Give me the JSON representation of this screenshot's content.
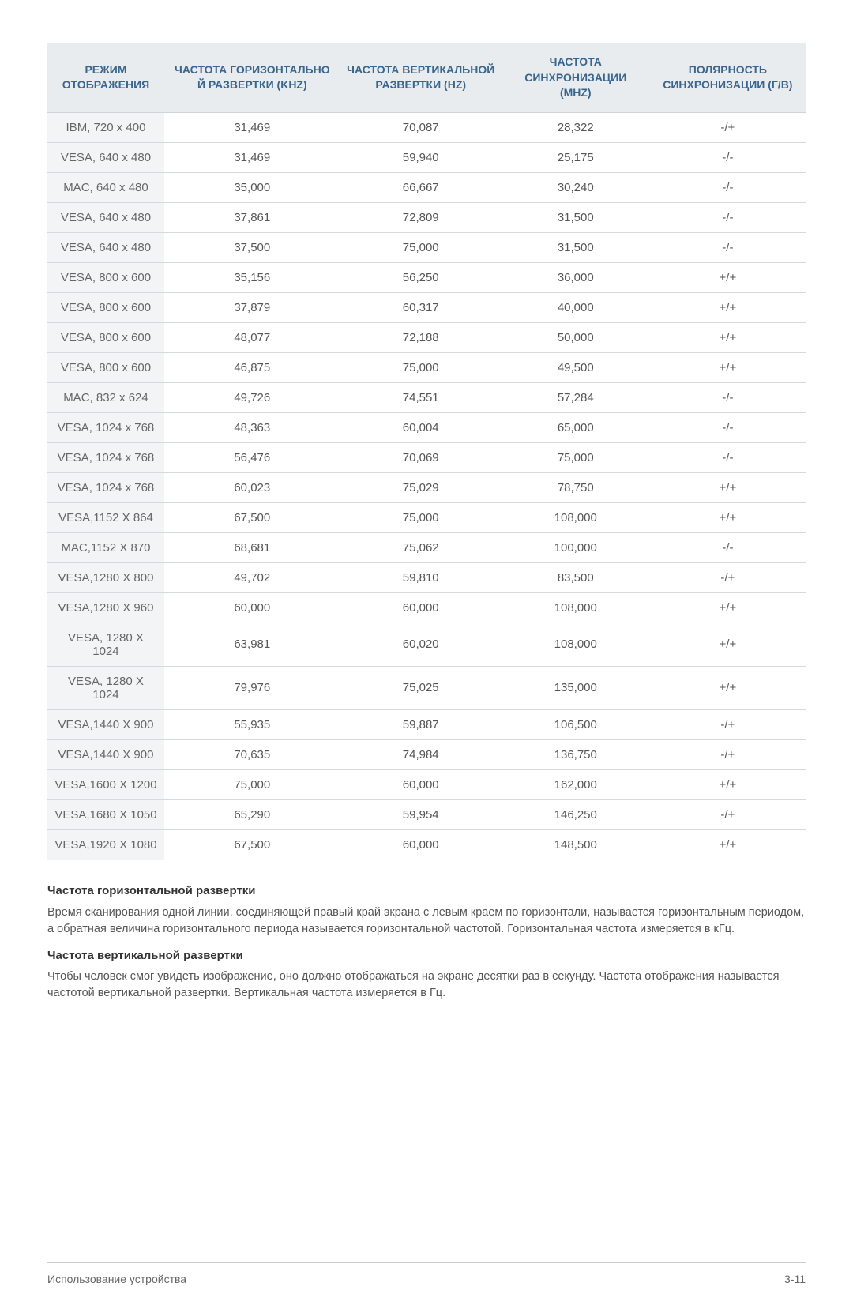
{
  "table": {
    "columns": [
      "РЕЖИМ ОТОБРАЖЕНИЯ",
      "ЧАСТОТА ГОРИЗОНТАЛЬНО Й РАЗВЕРТКИ (KHZ)",
      "ЧАСТОТА ВЕРТИКАЛЬНОЙ РАЗВЕРТКИ (HZ)",
      "ЧАСТОТА СИНХРОНИЗАЦИИ (MHZ)",
      "ПОЛЯРНОСТЬ СИНХРОНИЗАЦИИ (Г/В)"
    ],
    "header_color": "#38668f",
    "header_bg": "#e9ecee",
    "first_col_bg": "#f3f4f5",
    "border_color": "#d7dadc",
    "rows": [
      [
        "IBM, 720 x 400",
        "31,469",
        "70,087",
        "28,322",
        "-/+"
      ],
      [
        "VESA, 640 x 480",
        "31,469",
        "59,940",
        "25,175",
        "-/-"
      ],
      [
        "MAC, 640 x 480",
        "35,000",
        "66,667",
        "30,240",
        "-/-"
      ],
      [
        "VESA, 640 x 480",
        "37,861",
        "72,809",
        "31,500",
        "-/-"
      ],
      [
        "VESA, 640 x 480",
        "37,500",
        "75,000",
        "31,500",
        "-/-"
      ],
      [
        "VESA, 800 x 600",
        "35,156",
        "56,250",
        "36,000",
        "+/+"
      ],
      [
        "VESA, 800 x 600",
        "37,879",
        "60,317",
        "40,000",
        "+/+"
      ],
      [
        "VESA, 800 x 600",
        "48,077",
        "72,188",
        "50,000",
        "+/+"
      ],
      [
        "VESA, 800 x 600",
        "46,875",
        "75,000",
        "49,500",
        "+/+"
      ],
      [
        "MAC, 832 x 624",
        "49,726",
        "74,551",
        "57,284",
        "-/-"
      ],
      [
        "VESA, 1024 x 768",
        "48,363",
        "60,004",
        "65,000",
        "-/-"
      ],
      [
        "VESA, 1024 x 768",
        "56,476",
        "70,069",
        "75,000",
        "-/-"
      ],
      [
        "VESA, 1024 x 768",
        "60,023",
        "75,029",
        "78,750",
        "+/+"
      ],
      [
        "VESA,1152 X 864",
        "67,500",
        "75,000",
        "108,000",
        "+/+"
      ],
      [
        "MAC,1152 X 870",
        "68,681",
        "75,062",
        "100,000",
        "-/-"
      ],
      [
        "VESA,1280 X 800",
        "49,702",
        "59,810",
        "83,500",
        "-/+"
      ],
      [
        "VESA,1280 X 960",
        "60,000",
        "60,000",
        "108,000",
        "+/+"
      ],
      [
        "VESA, 1280 X 1024",
        "63,981",
        "60,020",
        "108,000",
        "+/+"
      ],
      [
        "VESA, 1280 X 1024",
        "79,976",
        "75,025",
        "135,000",
        "+/+"
      ],
      [
        "VESA,1440 X 900",
        "55,935",
        "59,887",
        "106,500",
        "-/+"
      ],
      [
        "VESA,1440 X 900",
        "70,635",
        "74,984",
        "136,750",
        "-/+"
      ],
      [
        "VESA,1600 X 1200",
        "75,000",
        "60,000",
        "162,000",
        "+/+"
      ],
      [
        "VESA,1680 X 1050",
        "65,290",
        "59,954",
        "146,250",
        "-/+"
      ],
      [
        "VESA,1920 X 1080",
        "67,500",
        "60,000",
        "148,500",
        "+/+"
      ]
    ]
  },
  "section1": {
    "heading": "Частота горизонтальной развертки",
    "body": "Время сканирования одной линии, соединяющей правый край экрана с левым краем по горизонтали, называется горизонтальным периодом, а обратная величина горизонтального периода называется горизонтальной частотой. Горизонтальная частота измеряется в кГц."
  },
  "section2": {
    "heading": "Частота вертикальной развертки",
    "body": "Чтобы человек смог увидеть изображение, оно должно отображаться на экране десятки раз в секунду. Частота отображения называется частотой вертикальной развертки. Вертикальная частота измеряется в Гц."
  },
  "footer": {
    "left": "Использование устройства",
    "right": "3-11"
  }
}
